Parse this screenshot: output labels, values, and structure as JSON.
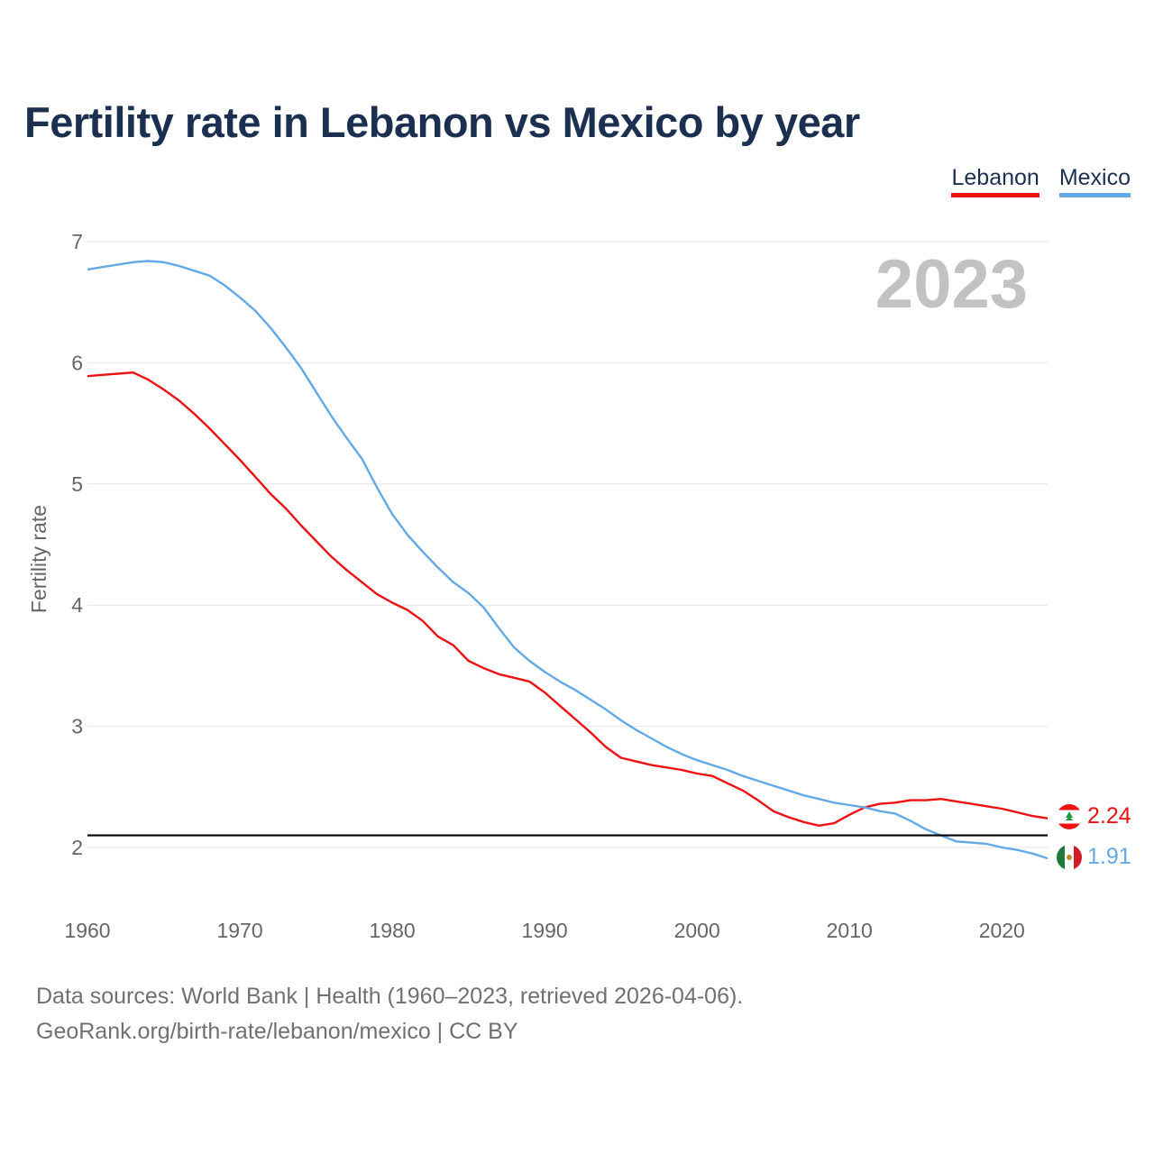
{
  "title": "Fertility rate in Lebanon vs Mexico by year",
  "legend": [
    "Lebanon",
    "Mexico"
  ],
  "footer": {
    "line1": "Data sources: World Bank | Health (1960–2023, retrieved 2026-04-06).",
    "line2": "GeoRank.org/birth-rate/lebanon/mexico | CC BY"
  },
  "colors": {
    "lebanon": "#ee1111",
    "mexico": "#63a9e6",
    "reference": "#000000"
  },
  "chart_data": {
    "type": "line",
    "title": "Fertility rate in Lebanon vs Mexico by year",
    "ylabel": "Fertility rate",
    "xlabel": "",
    "xlim": [
      1960,
      2023
    ],
    "ylim": [
      1.5,
      7.0
    ],
    "yticks": [
      2,
      3,
      4,
      5,
      6,
      7
    ],
    "xticks": [
      1960,
      1970,
      1980,
      1990,
      2000,
      2010,
      2020
    ],
    "grid": true,
    "legend_position": "top-right",
    "year_label": "2023",
    "reference_line": 2.1,
    "x": [
      1960,
      1961,
      1962,
      1963,
      1964,
      1965,
      1966,
      1967,
      1968,
      1969,
      1970,
      1971,
      1972,
      1973,
      1974,
      1975,
      1976,
      1977,
      1978,
      1979,
      1980,
      1981,
      1982,
      1983,
      1984,
      1985,
      1986,
      1987,
      1988,
      1989,
      1990,
      1991,
      1992,
      1993,
      1994,
      1995,
      1996,
      1997,
      1998,
      1999,
      2000,
      2001,
      2002,
      2003,
      2004,
      2005,
      2006,
      2007,
      2008,
      2009,
      2010,
      2011,
      2012,
      2013,
      2014,
      2015,
      2016,
      2017,
      2018,
      2019,
      2020,
      2021,
      2022,
      2023
    ],
    "series": [
      {
        "name": "Lebanon",
        "color": "#ee1111",
        "end_label": "2.24",
        "values": [
          5.89,
          5.9,
          5.91,
          5.92,
          5.86,
          5.78,
          5.69,
          5.58,
          5.46,
          5.33,
          5.2,
          5.06,
          4.92,
          4.8,
          4.66,
          4.53,
          4.4,
          4.29,
          4.19,
          4.09,
          4.02,
          3.96,
          3.87,
          3.74,
          3.67,
          3.54,
          3.48,
          3.43,
          3.4,
          3.37,
          3.28,
          3.17,
          3.06,
          2.95,
          2.83,
          2.74,
          2.71,
          2.68,
          2.66,
          2.64,
          2.61,
          2.59,
          2.53,
          2.47,
          2.39,
          2.3,
          2.25,
          2.21,
          2.18,
          2.2,
          2.27,
          2.33,
          2.36,
          2.37,
          2.39,
          2.39,
          2.4,
          2.38,
          2.36,
          2.34,
          2.32,
          2.29,
          2.26,
          2.24
        ]
      },
      {
        "name": "Mexico",
        "color": "#63a9e6",
        "end_label": "1.91",
        "values": [
          6.77,
          6.79,
          6.81,
          6.83,
          6.84,
          6.83,
          6.8,
          6.76,
          6.72,
          6.64,
          6.54,
          6.43,
          6.29,
          6.13,
          5.96,
          5.76,
          5.56,
          5.38,
          5.21,
          4.97,
          4.75,
          4.58,
          4.44,
          4.31,
          4.19,
          4.1,
          3.98,
          3.81,
          3.65,
          3.54,
          3.45,
          3.37,
          3.3,
          3.22,
          3.14,
          3.05,
          2.97,
          2.9,
          2.83,
          2.77,
          2.72,
          2.68,
          2.64,
          2.59,
          2.55,
          2.51,
          2.47,
          2.43,
          2.4,
          2.37,
          2.35,
          2.33,
          2.3,
          2.28,
          2.22,
          2.15,
          2.1,
          2.05,
          2.04,
          2.03,
          2.0,
          1.98,
          1.95,
          1.91
        ]
      }
    ]
  }
}
